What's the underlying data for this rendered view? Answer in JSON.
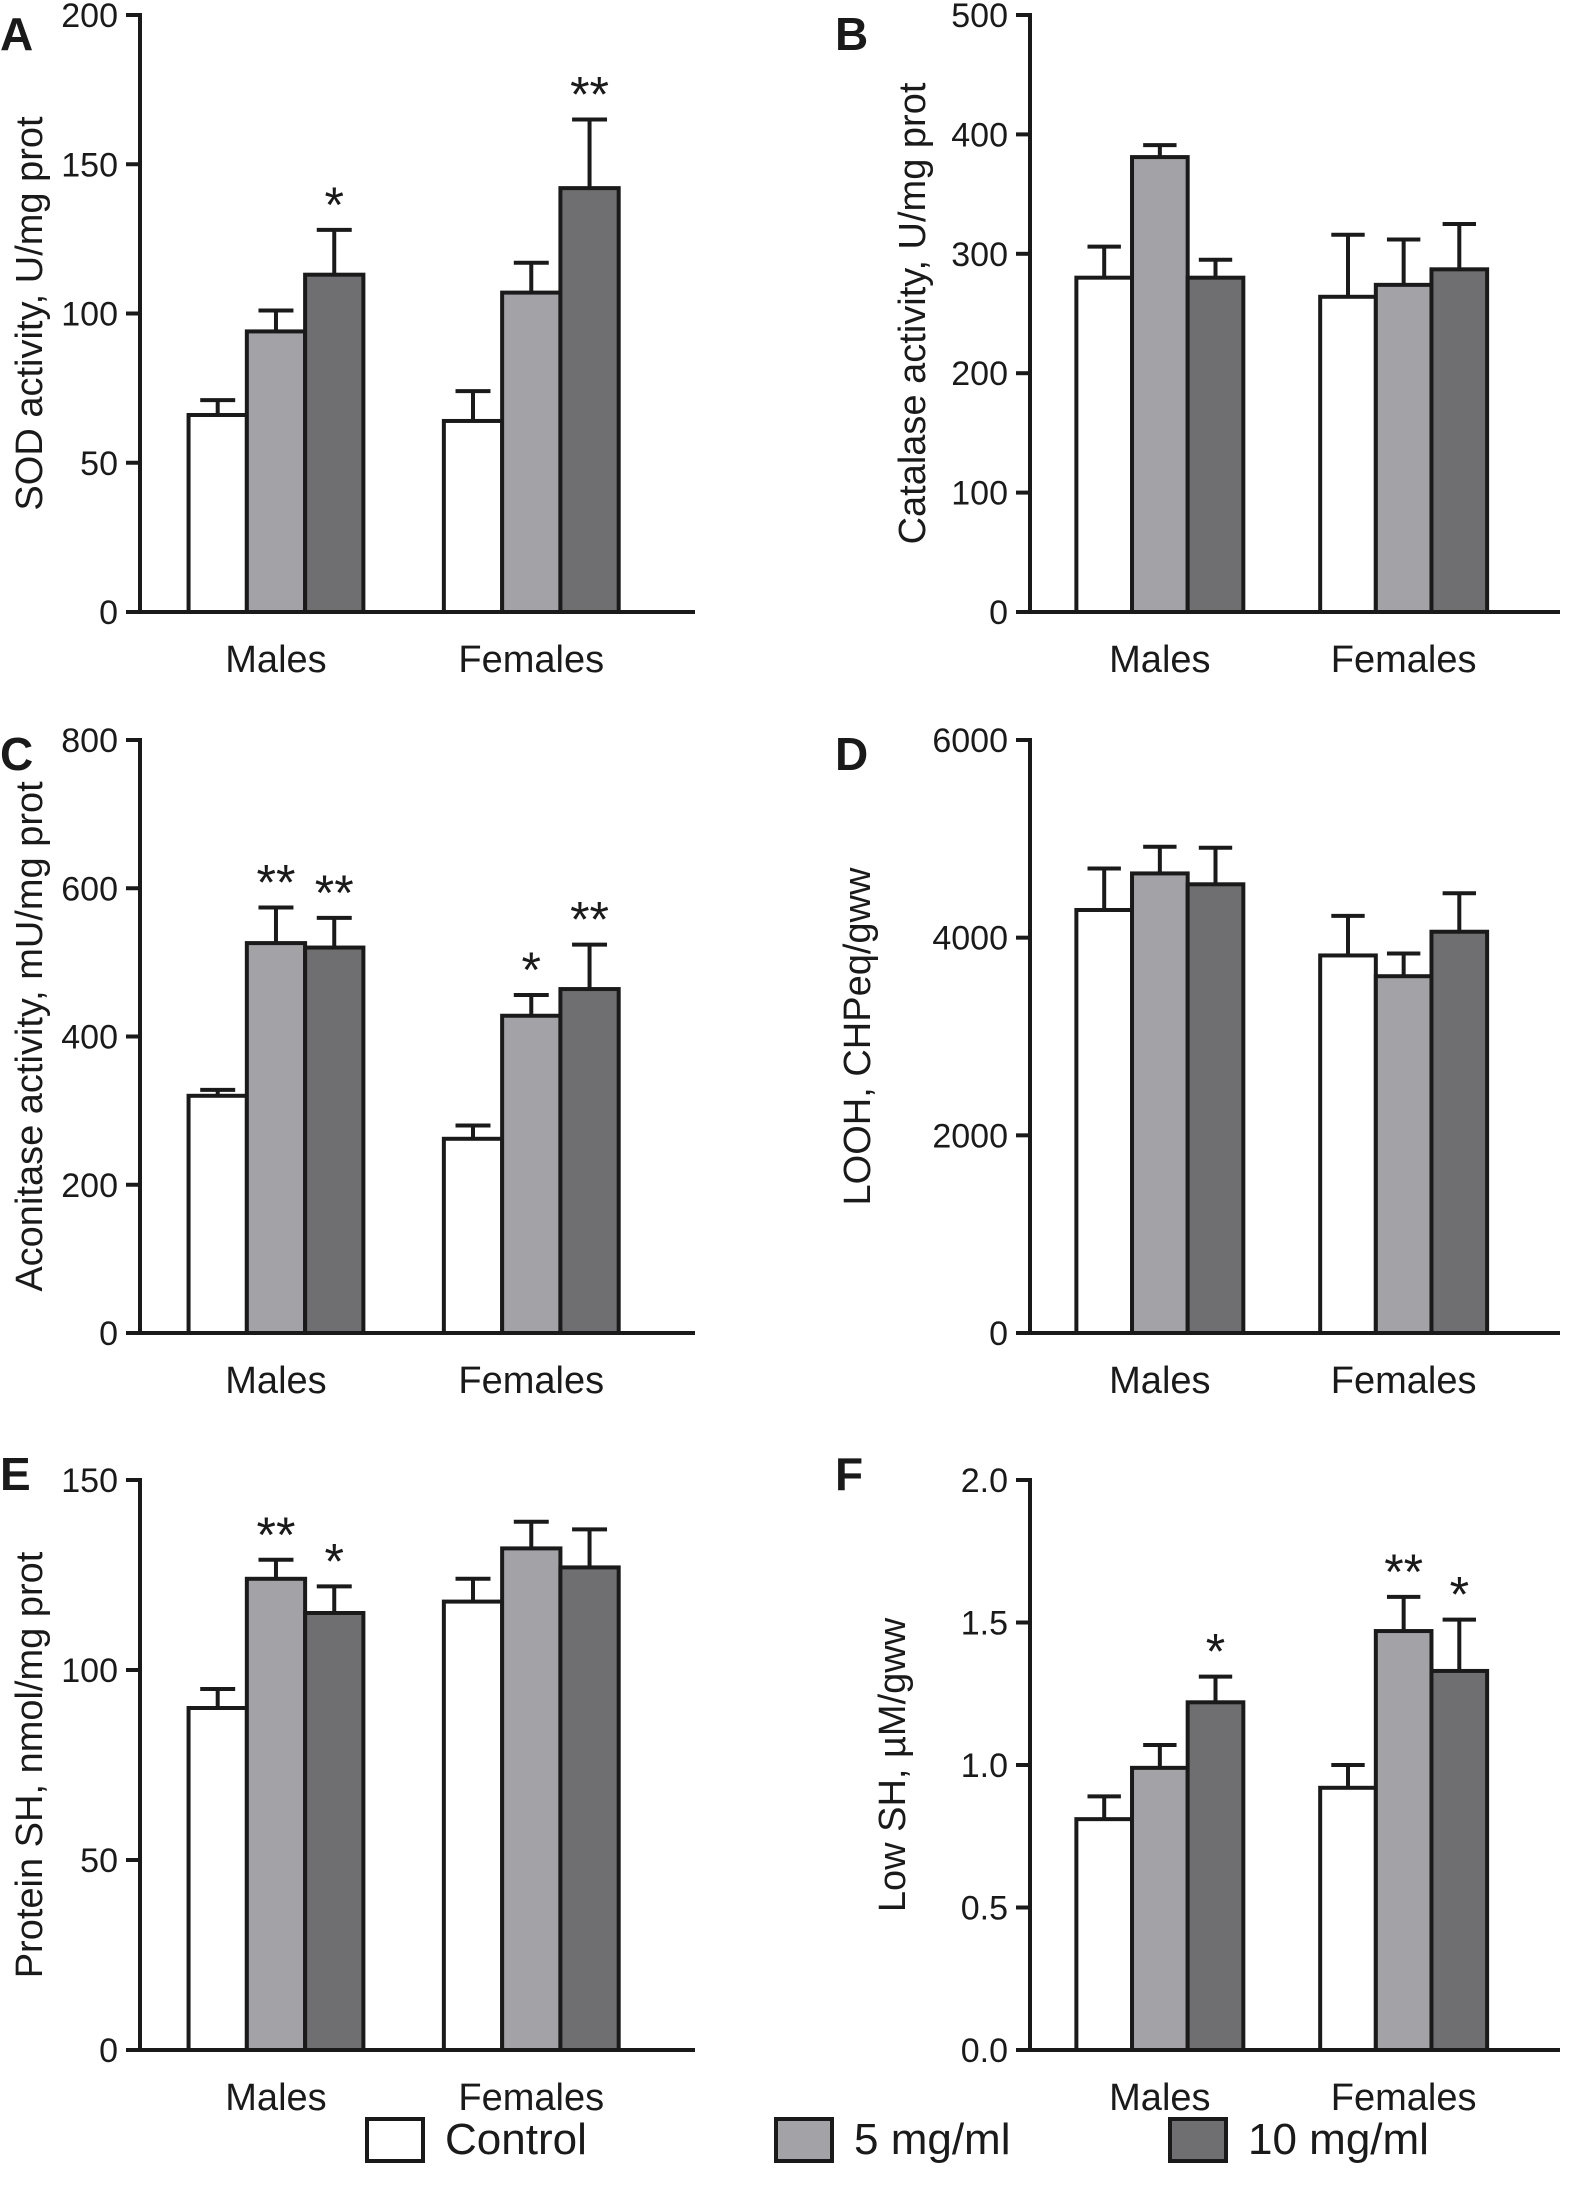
{
  "chart_data": [
    {
      "panel": "A",
      "type": "bar",
      "ylabel": "SOD activity, U/mg prot",
      "ylim": [
        0,
        200
      ],
      "yticks": [
        "0",
        "50",
        "100",
        "150",
        "200"
      ],
      "categories": [
        "Males",
        "Females"
      ],
      "series": [
        {
          "name": "Control",
          "values": [
            66,
            64
          ],
          "errors": [
            5,
            10
          ],
          "marks": [
            "",
            ""
          ]
        },
        {
          "name": "5 mg/ml",
          "values": [
            94,
            107
          ],
          "errors": [
            7,
            10
          ],
          "marks": [
            "",
            ""
          ]
        },
        {
          "name": "10 mg/ml",
          "values": [
            113,
            142
          ],
          "errors": [
            15,
            23
          ],
          "marks": [
            "*",
            "**"
          ]
        }
      ]
    },
    {
      "panel": "B",
      "type": "bar",
      "ylabel": "Catalase activity, U/mg prot",
      "ylim": [
        0,
        500
      ],
      "yticks": [
        "0",
        "100",
        "200",
        "300",
        "400",
        "500"
      ],
      "categories": [
        "Males",
        "Females"
      ],
      "series": [
        {
          "name": "Control",
          "values": [
            280,
            264
          ],
          "errors": [
            26,
            52
          ],
          "marks": [
            "",
            ""
          ]
        },
        {
          "name": "5 mg/ml",
          "values": [
            381,
            274
          ],
          "errors": [
            10,
            38
          ],
          "marks": [
            "",
            ""
          ]
        },
        {
          "name": "10 mg/ml",
          "values": [
            280,
            287
          ],
          "errors": [
            15,
            38
          ],
          "marks": [
            "",
            ""
          ]
        }
      ]
    },
    {
      "panel": "C",
      "type": "bar",
      "ylabel": "Aconitase activity, mU/mg prot",
      "ylim": [
        0,
        800
      ],
      "yticks": [
        "0",
        "200",
        "400",
        "600",
        "800"
      ],
      "categories": [
        "Males",
        "Females"
      ],
      "series": [
        {
          "name": "Control",
          "values": [
            320,
            262
          ],
          "errors": [
            8,
            18
          ],
          "marks": [
            "",
            ""
          ]
        },
        {
          "name": "5 mg/ml",
          "values": [
            526,
            428
          ],
          "errors": [
            48,
            28
          ],
          "marks": [
            "**",
            "*"
          ]
        },
        {
          "name": "10 mg/ml",
          "values": [
            520,
            464
          ],
          "errors": [
            40,
            60
          ],
          "marks": [
            "**",
            "**"
          ]
        }
      ]
    },
    {
      "panel": "D",
      "type": "bar",
      "ylabel": "LOOH, CHPeq/gww",
      "ylim": [
        0,
        6000
      ],
      "yticks": [
        "0",
        "2000",
        "4000",
        "6000"
      ],
      "categories": [
        "Males",
        "Females"
      ],
      "series": [
        {
          "name": "Control",
          "values": [
            4280,
            3820
          ],
          "errors": [
            420,
            400
          ],
          "marks": [
            "",
            ""
          ]
        },
        {
          "name": "5 mg/ml",
          "values": [
            4650,
            3610
          ],
          "errors": [
            270,
            230
          ],
          "marks": [
            "",
            ""
          ]
        },
        {
          "name": "10 mg/ml",
          "values": [
            4540,
            4060
          ],
          "errors": [
            370,
            390
          ],
          "marks": [
            "",
            ""
          ]
        }
      ]
    },
    {
      "panel": "E",
      "type": "bar",
      "ylabel": "Protein SH, nmol/mg prot",
      "ylim": [
        0,
        150
      ],
      "yticks": [
        "0",
        "50",
        "100",
        "150"
      ],
      "categories": [
        "Males",
        "Females"
      ],
      "series": [
        {
          "name": "Control",
          "values": [
            90,
            118
          ],
          "errors": [
            5,
            6
          ],
          "marks": [
            "",
            ""
          ]
        },
        {
          "name": "5 mg/ml",
          "values": [
            124,
            132
          ],
          "errors": [
            5,
            7
          ],
          "marks": [
            "**",
            ""
          ]
        },
        {
          "name": "10 mg/ml",
          "values": [
            115,
            127
          ],
          "errors": [
            7,
            10
          ],
          "marks": [
            "*",
            ""
          ]
        }
      ]
    },
    {
      "panel": "F",
      "type": "bar",
      "ylabel": "Low SH, µM/gww",
      "ylim": [
        0,
        2.0
      ],
      "yticks": [
        "0.0",
        "0.5",
        "1.0",
        "1.5",
        "2.0"
      ],
      "categories": [
        "Males",
        "Females"
      ],
      "series": [
        {
          "name": "Control",
          "values": [
            0.81,
            0.92
          ],
          "errors": [
            0.08,
            0.08
          ],
          "marks": [
            "",
            ""
          ]
        },
        {
          "name": "5 mg/ml",
          "values": [
            0.99,
            1.47
          ],
          "errors": [
            0.08,
            0.12
          ],
          "marks": [
            "",
            "**"
          ]
        },
        {
          "name": "10 mg/ml",
          "values": [
            1.22,
            1.33
          ],
          "errors": [
            0.09,
            0.18
          ],
          "marks": [
            "*",
            "*"
          ]
        }
      ]
    }
  ],
  "legend": {
    "items": [
      {
        "label": "Control",
        "color": "#ffffff"
      },
      {
        "label": "5 mg/ml",
        "color": "#a3a3a7"
      },
      {
        "label": "10 mg/ml",
        "color": "#6f6f72"
      }
    ]
  },
  "colors": {
    "series": [
      "#ffffff",
      "#a3a3a7",
      "#6f6f72"
    ],
    "stroke": "#1a1a1a"
  }
}
